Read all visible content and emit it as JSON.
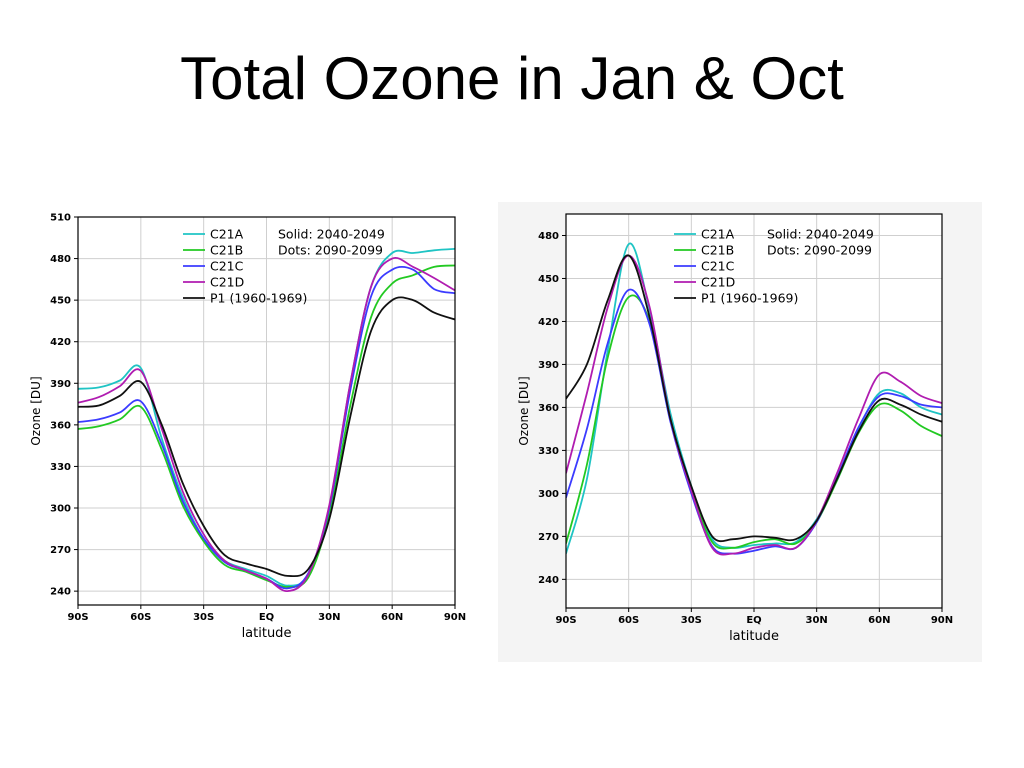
{
  "slide": {
    "title": "Total Ozone in Jan & Oct"
  },
  "chart_data": [
    {
      "type": "line",
      "title": "",
      "xlabel": "latitude",
      "ylabel": "Ozone [DU]",
      "xlim": [
        -90,
        90
      ],
      "ylim": [
        230,
        510
      ],
      "xticks": [
        -90,
        -60,
        -30,
        0,
        30,
        60,
        90
      ],
      "xtick_labels": [
        "90S",
        "60S",
        "30S",
        "EQ",
        "30N",
        "60N",
        "90N"
      ],
      "yticks": [
        240,
        270,
        300,
        330,
        360,
        390,
        420,
        450,
        480,
        510
      ],
      "ytick_labels": [
        "240",
        "270",
        "300",
        "330",
        "360",
        "390",
        "420",
        "450",
        "480",
        "510"
      ],
      "grid": true,
      "legend": {
        "position": "top-right",
        "entries": [
          "C21A",
          "C21B",
          "C21C",
          "C21D",
          "P1  (1960-1969)"
        ],
        "notes": [
          "Solid:  2040-2049",
          "Dots:  2090-2099"
        ]
      },
      "x": [
        -90,
        -80,
        -70,
        -60,
        -50,
        -40,
        -30,
        -20,
        -10,
        0,
        10,
        20,
        30,
        40,
        50,
        60,
        70,
        80,
        90
      ],
      "series": [
        {
          "name": "C21A",
          "color": "#1fc4c4",
          "values": [
            386,
            387,
            392,
            401,
            350,
            308,
            278,
            262,
            256,
            251,
            244,
            252,
            300,
            390,
            460,
            484,
            484,
            486,
            487
          ]
        },
        {
          "name": "C21B",
          "color": "#22c922",
          "values": [
            357,
            359,
            364,
            373,
            342,
            302,
            276,
            259,
            254,
            248,
            243,
            250,
            295,
            374,
            438,
            462,
            468,
            474,
            475
          ]
        },
        {
          "name": "C21C",
          "color": "#3b3bff",
          "values": [
            362,
            364,
            369,
            377,
            346,
            305,
            278,
            261,
            255,
            249,
            242,
            253,
            300,
            385,
            453,
            472,
            472,
            458,
            455
          ]
        },
        {
          "name": "C21D",
          "color": "#b01cb0",
          "values": [
            376,
            380,
            388,
            399,
            357,
            312,
            281,
            262,
            255,
            249,
            240,
            252,
            302,
            390,
            460,
            480,
            474,
            466,
            457
          ]
        },
        {
          "name": "P1  (1960-1969)",
          "color": "#111111",
          "values": [
            373,
            374,
            381,
            391,
            360,
            318,
            287,
            266,
            260,
            256,
            251,
            256,
            292,
            366,
            428,
            450,
            450,
            441,
            436
          ]
        }
      ]
    },
    {
      "type": "line",
      "title": "",
      "xlabel": "latitude",
      "ylabel": "Ozone [DU]",
      "xlim": [
        -90,
        90
      ],
      "ylim": [
        220,
        495
      ],
      "xticks": [
        -90,
        -60,
        -30,
        0,
        30,
        60,
        90
      ],
      "xtick_labels": [
        "90S",
        "60S",
        "30S",
        "EQ",
        "30N",
        "60N",
        "90N"
      ],
      "yticks": [
        240,
        270,
        300,
        330,
        360,
        390,
        420,
        450,
        480
      ],
      "ytick_labels": [
        "240",
        "270",
        "300",
        "330",
        "360",
        "390",
        "420",
        "450",
        "480"
      ],
      "grid": true,
      "legend": {
        "position": "top-right",
        "entries": [
          "C21A",
          "C21B",
          "C21C",
          "C21D",
          "P1  (1960-1969)"
        ],
        "notes": [
          "Solid:  2040-2049",
          "Dots:  2090-2099"
        ]
      },
      "x": [
        -90,
        -80,
        -70,
        -60,
        -50,
        -40,
        -30,
        -20,
        -10,
        0,
        10,
        20,
        30,
        40,
        50,
        60,
        70,
        80,
        90
      ],
      "series": [
        {
          "name": "C21A",
          "color": "#1fc4c4",
          "values": [
            258,
            310,
            400,
            474,
            428,
            356,
            305,
            268,
            262,
            264,
            265,
            266,
            282,
            310,
            345,
            370,
            370,
            360,
            355
          ]
        },
        {
          "name": "C21B",
          "color": "#22c922",
          "values": [
            265,
            320,
            395,
            437,
            420,
            352,
            303,
            266,
            262,
            266,
            268,
            265,
            280,
            310,
            342,
            362,
            358,
            347,
            340
          ]
        },
        {
          "name": "C21C",
          "color": "#3b3bff",
          "values": [
            297,
            345,
            405,
            442,
            418,
            350,
            300,
            263,
            258,
            260,
            263,
            262,
            280,
            312,
            346,
            368,
            368,
            362,
            360
          ]
        },
        {
          "name": "C21D",
          "color": "#b01cb0",
          "values": [
            314,
            370,
            430,
            466,
            430,
            352,
            302,
            262,
            258,
            262,
            264,
            262,
            281,
            315,
            352,
            383,
            378,
            368,
            363
          ]
        },
        {
          "name": "P1  (1960-1969)",
          "color": "#111111",
          "values": [
            366,
            390,
            435,
            466,
            423,
            352,
            305,
            270,
            268,
            270,
            269,
            268,
            281,
            311,
            343,
            365,
            362,
            355,
            350
          ]
        }
      ]
    }
  ]
}
